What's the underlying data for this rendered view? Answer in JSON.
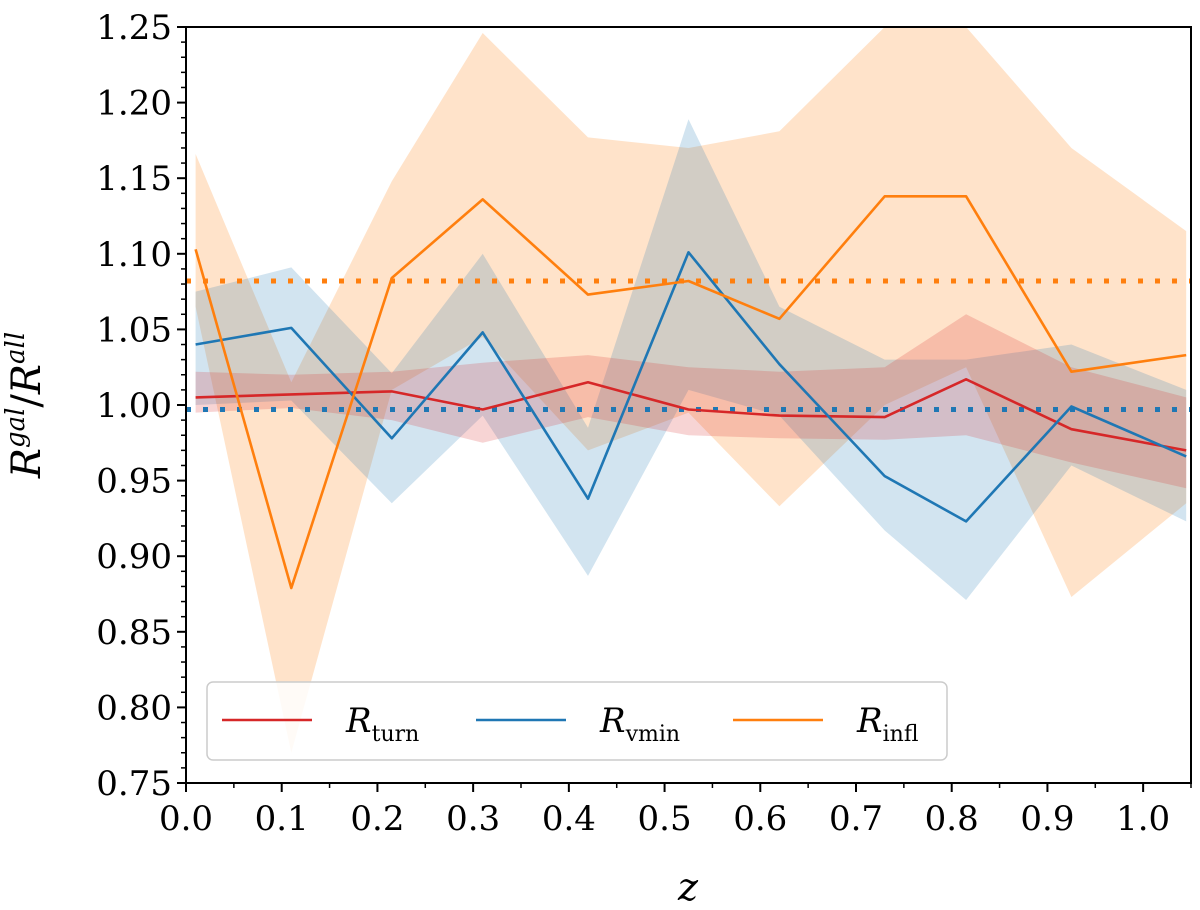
{
  "chart_data": {
    "type": "line",
    "xlabel": "z",
    "ylabel": "Rgal/Rall",
    "xlim": [
      0.0,
      1.05
    ],
    "ylim": [
      0.75,
      1.25
    ],
    "xticks": [
      "0.0",
      "0.1",
      "0.2",
      "0.3",
      "0.4",
      "0.5",
      "0.6",
      "0.7",
      "0.8",
      "0.9",
      "1.0"
    ],
    "yticks": [
      "0.75",
      "0.80",
      "0.85",
      "0.90",
      "0.95",
      "1.00",
      "1.05",
      "1.10",
      "1.15",
      "1.20",
      "1.25"
    ],
    "grid": false,
    "legend_placement": "lower-center",
    "x": [
      0.01,
      0.11,
      0.215,
      0.31,
      0.42,
      0.525,
      0.62,
      0.73,
      0.815,
      0.925,
      1.045
    ],
    "series": [
      {
        "name": "turn",
        "legend_main": "R",
        "legend_sub": "turn",
        "color": "#d62728",
        "values": [
          1.005,
          1.007,
          1.009,
          0.997,
          1.015,
          0.997,
          0.993,
          0.992,
          1.017,
          0.984,
          0.97
        ],
        "band_upper": [
          1.022,
          1.02,
          1.022,
          1.028,
          1.033,
          1.025,
          1.022,
          1.025,
          1.06,
          1.025,
          1.005
        ],
        "band_lower": [
          0.995,
          0.998,
          0.99,
          0.975,
          0.992,
          0.98,
          0.978,
          0.977,
          0.98,
          0.962,
          0.945
        ],
        "mean_level": 0.997
      },
      {
        "name": "vmin",
        "legend_main": "R",
        "legend_sub": "vmin",
        "color": "#1f77b4",
        "values": [
          1.04,
          1.051,
          0.978,
          1.048,
          0.938,
          1.101,
          1.027,
          0.953,
          0.923,
          0.999,
          0.966
        ],
        "band_upper": [
          1.075,
          1.091,
          1.021,
          1.1,
          0.985,
          1.189,
          1.065,
          1.03,
          1.03,
          1.04,
          1.01
        ],
        "band_lower": [
          1.0,
          1.003,
          0.935,
          0.993,
          0.887,
          1.01,
          0.993,
          0.917,
          0.871,
          0.96,
          0.923
        ],
        "mean_level": 0.997
      },
      {
        "name": "infl",
        "legend_main": "R",
        "legend_sub": "infl",
        "color": "#ff7f0e",
        "values": [
          1.103,
          0.879,
          1.084,
          1.136,
          1.073,
          1.082,
          1.057,
          1.138,
          1.138,
          1.022,
          1.033
        ],
        "band_upper": [
          1.166,
          1.015,
          1.148,
          1.246,
          1.177,
          1.17,
          1.181,
          1.25,
          1.25,
          1.17,
          1.115
        ],
        "band_lower": [
          1.065,
          0.77,
          1.01,
          1.045,
          0.97,
          0.995,
          0.933,
          1.0,
          1.025,
          0.873,
          0.935
        ],
        "mean_level": 1.082
      }
    ]
  }
}
